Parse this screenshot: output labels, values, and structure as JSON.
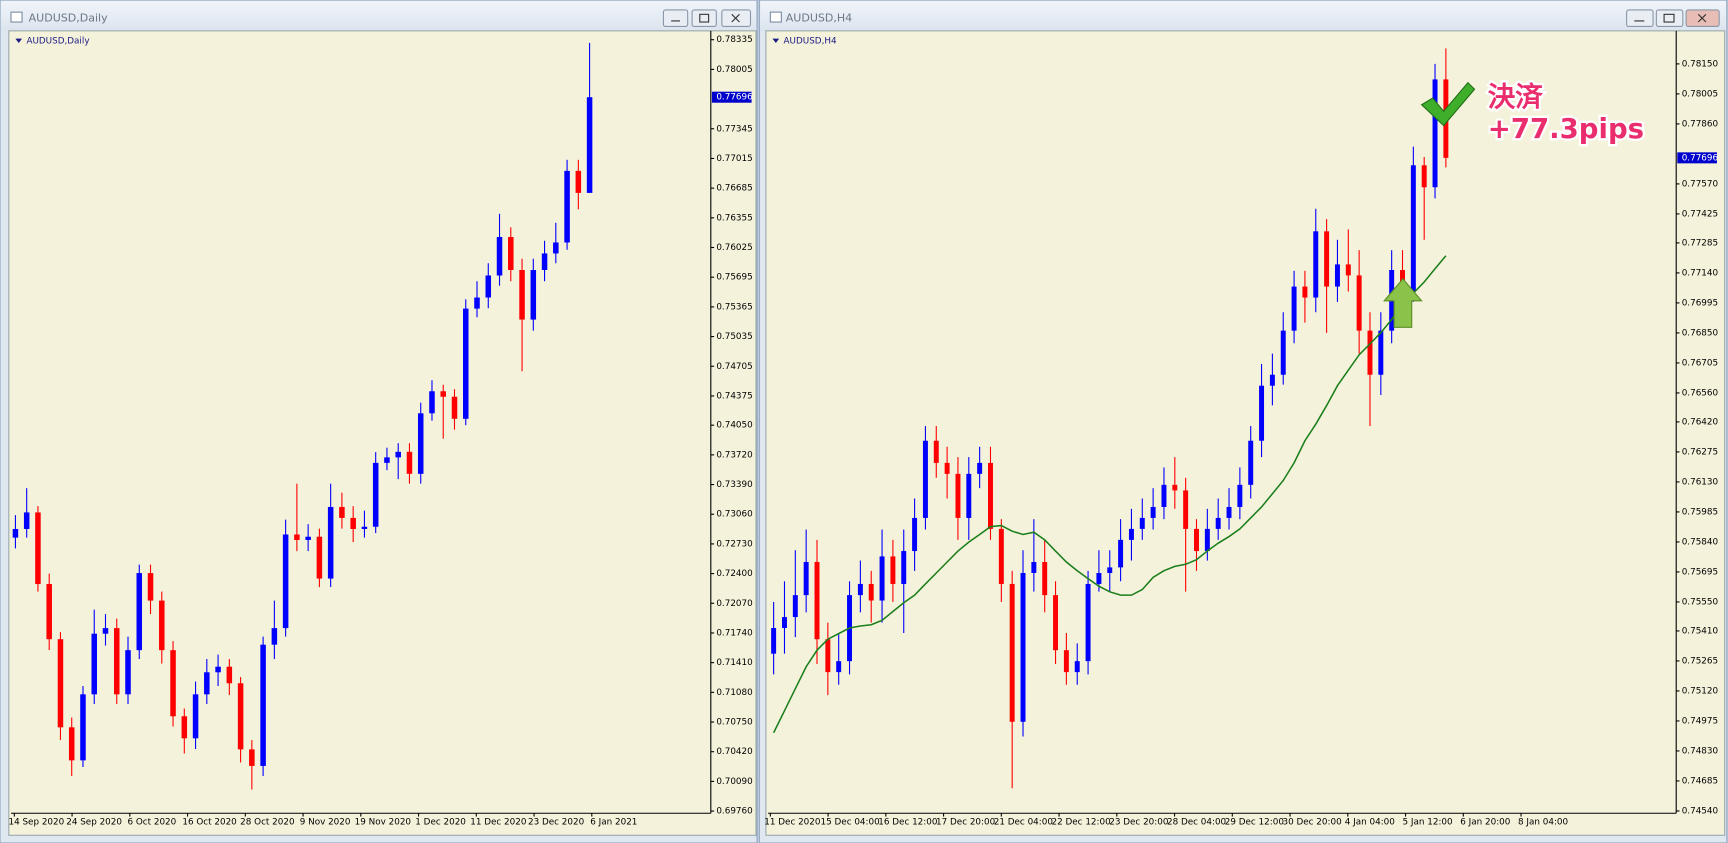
{
  "windows": [
    {
      "title": "AUDUSD,Daily",
      "chart_label": "AUDUSD,Daily",
      "current_price": 0.77696,
      "ylim": [
        0.69736,
        0.78409
      ],
      "yticks": [
        0.78335,
        0.78005,
        0.77345,
        0.77015,
        0.76685,
        0.76355,
        0.76025,
        0.75695,
        0.75365,
        0.75035,
        0.74705,
        0.74375,
        {
          "value": 0.7405,
          "label": "0.74050"
        },
        {
          "value": 0.7372,
          "label": "0.73720"
        },
        {
          "value": 0.7339,
          "label": "0.73390"
        },
        {
          "value": 0.7306,
          "label": "0.73060"
        },
        {
          "value": 0.7273,
          "label": "0.72730"
        },
        {
          "value": 0.724,
          "label": "0.72400"
        },
        {
          "value": 0.7207,
          "label": "0.72070"
        },
        {
          "value": 0.7174,
          "label": "0.71740"
        },
        {
          "value": 0.7141,
          "label": "0.71410"
        },
        {
          "value": 0.7108,
          "label": "0.71080"
        },
        {
          "value": 0.7075,
          "label": "0.70750"
        },
        {
          "value": 0.7042,
          "label": "0.70420"
        },
        {
          "value": 0.7009,
          "label": "0.70090"
        },
        {
          "value": 0.6976,
          "label": "0.69760"
        }
      ],
      "xticks": [
        "14 Sep 2020",
        "24 Sep 2020",
        "6 Oct 2020",
        "16 Oct 2020",
        "28 Oct 2020",
        "9 Nov 2020",
        "19 Nov 2020",
        "1 Dec 2020",
        "11 Dec 2020",
        "23 Dec 2020",
        "6 Jan 2021"
      ],
      "up_color": "#0000ff",
      "down_color": "#ff0000",
      "candles": {
        "open": [
          0.728,
          0.72896,
          0.7308,
          0.72284,
          0.71671,
          0.70691,
          0.70324,
          0.71058,
          0.71732,
          0.71794,
          0.71058,
          0.71549,
          0.72406,
          0.721,
          0.71549,
          0.70814,
          0.70569,
          0.71058,
          0.71303,
          0.71365,
          0.71181,
          0.70446,
          0.70262,
          0.7161,
          0.71794,
          0.72835,
          0.72774,
          0.7281,
          0.72345,
          0.73141,
          0.73019,
          0.72896,
          0.72921,
          0.73631,
          0.73692,
          0.73754,
          0.73509,
          0.74182,
          0.74427,
          0.74366,
          0.74121,
          0.75346,
          0.75469,
          0.75714,
          0.76142,
          0.75775,
          0.75224,
          0.75775,
          0.75959,
          0.76081,
          0.76877,
          0.76632
        ],
        "high": [
          0.7305,
          0.7335,
          0.7315,
          0.724,
          0.7175,
          0.708,
          0.7115,
          0.72,
          0.7195,
          0.719,
          0.717,
          0.725,
          0.725,
          0.722,
          0.7165,
          0.709,
          0.712,
          0.7145,
          0.715,
          0.7145,
          0.7125,
          0.7055,
          0.717,
          0.721,
          0.73,
          0.734,
          0.7295,
          0.729,
          0.734,
          0.733,
          0.7315,
          0.731,
          0.7375,
          0.738,
          0.7385,
          0.7385,
          0.743,
          0.7455,
          0.745,
          0.7445,
          0.7545,
          0.7565,
          0.7585,
          0.764,
          0.7625,
          0.759,
          0.759,
          0.761,
          0.763,
          0.77,
          0.77,
          0.783
        ],
        "low": [
          0.7268,
          0.728,
          0.722,
          0.7155,
          0.7055,
          0.7015,
          0.7025,
          0.7095,
          0.716,
          0.7095,
          0.7095,
          0.7145,
          0.7195,
          0.714,
          0.707,
          0.704,
          0.7045,
          0.7095,
          0.7115,
          0.7105,
          0.703,
          0.7,
          0.7015,
          0.7145,
          0.717,
          0.7265,
          0.7265,
          0.7225,
          0.7225,
          0.729,
          0.7275,
          0.728,
          0.7285,
          0.7355,
          0.7345,
          0.734,
          0.734,
          0.741,
          0.739,
          0.74,
          0.7405,
          0.7525,
          0.7535,
          0.756,
          0.7565,
          0.7465,
          0.751,
          0.7565,
          0.7585,
          0.76,
          0.7645,
          0.775
        ],
        "close": [
          0.72896,
          0.7308,
          0.72284,
          0.71671,
          0.70691,
          0.70324,
          0.71058,
          0.71732,
          0.71794,
          0.71058,
          0.71549,
          0.72406,
          0.721,
          0.71549,
          0.70814,
          0.70569,
          0.71058,
          0.71303,
          0.71365,
          0.71181,
          0.70446,
          0.70262,
          0.7161,
          0.71794,
          0.72835,
          0.72774,
          0.7281,
          0.72345,
          0.73141,
          0.73019,
          0.72896,
          0.72921,
          0.73631,
          0.73692,
          0.73754,
          0.73509,
          0.74182,
          0.74427,
          0.74366,
          0.74121,
          0.75346,
          0.75469,
          0.75714,
          0.76142,
          0.75775,
          0.75224,
          0.75775,
          0.75959,
          0.76081,
          0.76877,
          0.76632,
          0.77696
        ]
      }
    },
    {
      "title": "AUDUSD,H4",
      "chart_label": "AUDUSD,H4",
      "current_price": 0.77696,
      "ylim": [
        0.74529,
        0.78299
      ],
      "yticks": [
        {
          "value": 0.7815,
          "label": "0.78150"
        },
        0.78005,
        {
          "value": 0.7786,
          "label": "0.77860"
        },
        {
          "value": 0.7757,
          "label": "0.77570"
        },
        0.77425,
        0.77285,
        {
          "value": 0.7714,
          "label": "0.77140"
        },
        0.76995,
        {
          "value": 0.7685,
          "label": "0.76850"
        },
        0.76705,
        {
          "value": 0.7656,
          "label": "0.76560"
        },
        {
          "value": 0.7642,
          "label": "0.76420"
        },
        0.76275,
        {
          "value": 0.7613,
          "label": "0.76130"
        },
        0.75985,
        {
          "value": 0.7584,
          "label": "0.75840"
        },
        0.75695,
        {
          "value": 0.7555,
          "label": "0.75550"
        },
        {
          "value": 0.7541,
          "label": "0.75410"
        },
        0.75265,
        {
          "value": 0.7512,
          "label": "0.75120"
        },
        0.74975,
        {
          "value": 0.7483,
          "label": "0.74830"
        },
        0.74685,
        {
          "value": 0.7454,
          "label": "0.74540"
        }
      ],
      "xticks": [
        "11 Dec 2020",
        "15 Dec 04:00",
        "16 Dec 12:00",
        "17 Dec 20:00",
        "21 Dec 04:00",
        "22 Dec 12:00",
        "23 Dec 20:00",
        "28 Dec 04:00",
        "29 Dec 12:00",
        "30 Dec 20:00",
        "4 Jan 04:00",
        "5 Jan 12:00",
        "6 Jan 20:00",
        "8 Jan 04:00"
      ],
      "up_color": "#0000ff",
      "down_color": "#ff0000",
      "candles": {
        "open": [
          0.753,
          0.75424,
          0.75477,
          0.75583,
          0.75743,
          0.7537,
          0.75211,
          0.75264,
          0.75583,
          0.75637,
          0.75557,
          0.7577,
          0.75637,
          0.75796,
          0.75956,
          0.76329,
          0.76222,
          0.76169,
          0.75956,
          0.76169,
          0.76222,
          0.75903,
          0.75637,
          0.74971,
          0.7569,
          0.75743,
          0.75583,
          0.75317,
          0.75211,
          0.75264,
          0.75637,
          0.7569,
          0.75717,
          0.7585,
          0.75903,
          0.75956,
          0.76009,
          0.76116,
          0.76089,
          0.75903,
          0.75796,
          0.75903,
          0.75956,
          0.76009,
          0.76116,
          0.76329,
          0.76595,
          0.76648,
          0.76861,
          0.77074,
          0.77021,
          0.77341,
          0.77074,
          0.77181,
          0.77128,
          0.76861,
          0.76648,
          0.76861,
          0.77154,
          0.77048,
          0.7766,
          0.77554,
          0.78075
        ],
        "high": [
          0.7555,
          0.7565,
          0.758,
          0.759,
          0.7585,
          0.7545,
          0.754,
          0.7565,
          0.7575,
          0.757,
          0.759,
          0.7585,
          0.759,
          0.7605,
          0.764,
          0.764,
          0.763,
          0.7625,
          0.7625,
          0.763,
          0.763,
          0.7595,
          0.757,
          0.758,
          0.7595,
          0.7585,
          0.7565,
          0.754,
          0.7535,
          0.757,
          0.758,
          0.758,
          0.7595,
          0.76,
          0.7605,
          0.761,
          0.762,
          0.7625,
          0.7615,
          0.7595,
          0.76,
          0.7605,
          0.761,
          0.762,
          0.764,
          0.767,
          0.7675,
          0.7695,
          0.7715,
          0.7715,
          0.7745,
          0.774,
          0.773,
          0.7735,
          0.7725,
          0.7695,
          0.7695,
          0.7725,
          0.7725,
          0.7775,
          0.777,
          0.7815,
          0.78225
        ],
        "low": [
          0.752,
          0.753,
          0.7538,
          0.755,
          0.7525,
          0.751,
          0.7515,
          0.752,
          0.755,
          0.7545,
          0.7545,
          0.7555,
          0.754,
          0.757,
          0.759,
          0.7615,
          0.7605,
          0.7585,
          0.7585,
          0.761,
          0.7585,
          0.7555,
          0.7465,
          0.749,
          0.756,
          0.755,
          0.7525,
          0.7515,
          0.7515,
          0.752,
          0.756,
          0.756,
          0.7565,
          0.7575,
          0.7585,
          0.759,
          0.7595,
          0.76,
          0.756,
          0.757,
          0.7575,
          0.7585,
          0.759,
          0.7595,
          0.7605,
          0.7625,
          0.765,
          0.766,
          0.768,
          0.769,
          0.7695,
          0.7685,
          0.77,
          0.7705,
          0.7675,
          0.764,
          0.7655,
          0.768,
          0.7695,
          0.77,
          0.773,
          0.775,
          0.7765
        ],
        "close": [
          0.75424,
          0.75477,
          0.75583,
          0.75743,
          0.7537,
          0.75211,
          0.75264,
          0.75583,
          0.75637,
          0.75557,
          0.7577,
          0.75637,
          0.75796,
          0.75956,
          0.76329,
          0.76222,
          0.76169,
          0.75956,
          0.76169,
          0.76222,
          0.75903,
          0.75637,
          0.74971,
          0.7569,
          0.75743,
          0.75583,
          0.75317,
          0.75211,
          0.75264,
          0.75637,
          0.7569,
          0.75717,
          0.7585,
          0.75903,
          0.75956,
          0.76009,
          0.76116,
          0.76089,
          0.75903,
          0.75796,
          0.75903,
          0.75956,
          0.76009,
          0.76116,
          0.76329,
          0.76595,
          0.76648,
          0.76861,
          0.77074,
          0.77021,
          0.77341,
          0.77074,
          0.77181,
          0.77128,
          0.76861,
          0.76648,
          0.76861,
          0.77154,
          0.77048,
          0.7766,
          0.77554,
          0.78075,
          0.77696
        ]
      },
      "ma": {
        "color": "#1a7f1a",
        "values": [
          0.74918,
          0.75024,
          0.75131,
          0.75237,
          0.75317,
          0.7537,
          0.75397,
          0.75424,
          0.75434,
          0.7544,
          0.75461,
          0.75504,
          0.75546,
          0.75583,
          0.75637,
          0.7569,
          0.75743,
          0.75796,
          0.75839,
          0.75876,
          0.75914,
          0.75919,
          0.75892,
          0.75876,
          0.75887,
          0.7585,
          0.75796,
          0.75743,
          0.75701,
          0.75663,
          0.75626,
          0.75599,
          0.75583,
          0.75583,
          0.7561,
          0.75669,
          0.75701,
          0.75722,
          0.75732,
          0.75754,
          0.75796,
          0.75834,
          0.75866,
          0.75903,
          0.75956,
          0.76009,
          0.76073,
          0.76137,
          0.76222,
          0.76329,
          0.76409,
          0.76499,
          0.76595,
          0.7667,
          0.76744,
          0.76797,
          0.76851,
          0.76915,
          0.76989,
          0.77042,
          0.77096,
          0.7716,
          0.77223
        ]
      },
      "annotations": [
        "決済",
        "+77.3pips"
      ]
    }
  ]
}
